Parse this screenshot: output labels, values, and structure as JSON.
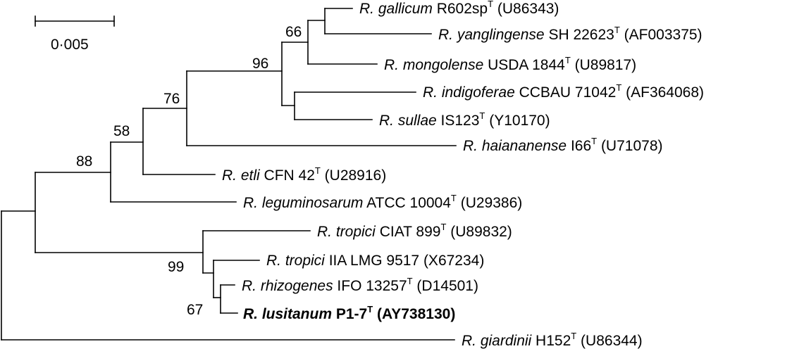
{
  "scale_bar": {
    "label": "0·005"
  },
  "taxa": [
    {
      "name": "R. gallicum",
      "strain": " R602sp",
      "sup": "T",
      "acc": " (U86343)"
    },
    {
      "name": "R. yanglingense",
      "strain": " SH 22623",
      "sup": "T",
      "acc": " (AF003375)"
    },
    {
      "name": "R. mongolense",
      "strain": " USDA 1844",
      "sup": "T",
      "acc": " (U89817)"
    },
    {
      "name": "R. indigoferae",
      "strain": " CCBAU 71042",
      "sup": "T",
      "acc": " (AF364068)"
    },
    {
      "name": "R. sullae",
      "strain": " IS123",
      "sup": "T",
      "acc": " (Y10170)"
    },
    {
      "name": "R. haiananense",
      "strain": " I66",
      "sup": "T",
      "acc": " (U71078)"
    },
    {
      "name": "R. etli",
      "strain": " CFN 42",
      "sup": "T",
      "acc": " (U28916)"
    },
    {
      "name": "R. leguminosarum",
      "strain": " ATCC 10004",
      "sup": "T",
      "acc": " (U29386)"
    },
    {
      "name": "R. tropici",
      "strain": " CIAT 899",
      "sup": "T",
      "acc": " (U89832)"
    },
    {
      "name": "R. tropici",
      "strain": " IIA LMG 9517",
      "sup": "",
      "acc": " (X67234)"
    },
    {
      "name": "R. rhizogenes",
      "strain": " IFO 13257",
      "sup": "T",
      "acc": " (D14501)"
    },
    {
      "name": "R. lusitanum",
      "strain": " P1-7",
      "sup": "T",
      "acc": " (AY738130)"
    },
    {
      "name": "R. giardinii",
      "strain": " H152",
      "sup": "T",
      "acc": " (U86344)"
    }
  ],
  "bootstrap": {
    "gallicum_yanglingense": "66",
    "galegae_group": "96",
    "node76": "76",
    "node58": "58",
    "node88": "88",
    "tropici_clade": "99",
    "rhizogenes_lusitanum": "67"
  }
}
